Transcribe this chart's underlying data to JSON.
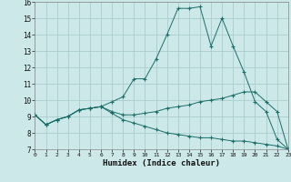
{
  "xlabel": "Humidex (Indice chaleur)",
  "bg_color": "#cce8e8",
  "grid_color": "#aacccc",
  "line_color": "#1a6e6a",
  "x_data": [
    0,
    1,
    2,
    3,
    4,
    5,
    6,
    7,
    8,
    9,
    10,
    11,
    12,
    13,
    14,
    15,
    16,
    17,
    18,
    19,
    20,
    21,
    22,
    23
  ],
  "line1": [
    9.1,
    8.5,
    8.8,
    9.0,
    9.4,
    9.5,
    9.6,
    9.9,
    10.2,
    11.3,
    11.3,
    12.5,
    14.0,
    15.6,
    15.6,
    15.7,
    13.3,
    15.0,
    13.3,
    11.7,
    9.9,
    9.3,
    7.6,
    7.0
  ],
  "line2": [
    9.1,
    8.5,
    8.8,
    9.0,
    9.4,
    9.5,
    9.6,
    9.3,
    9.1,
    9.1,
    9.2,
    9.3,
    9.5,
    9.6,
    9.7,
    9.9,
    10.0,
    10.1,
    10.3,
    10.5,
    10.5,
    9.9,
    9.3,
    7.0
  ],
  "line3": [
    9.1,
    8.5,
    8.8,
    9.0,
    9.4,
    9.5,
    9.6,
    9.2,
    8.8,
    8.6,
    8.4,
    8.2,
    8.0,
    7.9,
    7.8,
    7.7,
    7.7,
    7.6,
    7.5,
    7.5,
    7.4,
    7.3,
    7.2,
    7.0
  ],
  "xlim": [
    0,
    23
  ],
  "ylim": [
    7,
    16
  ],
  "yticks": [
    7,
    8,
    9,
    10,
    11,
    12,
    13,
    14,
    15,
    16
  ],
  "xticks": [
    0,
    1,
    2,
    3,
    4,
    5,
    6,
    7,
    8,
    9,
    10,
    11,
    12,
    13,
    14,
    15,
    16,
    17,
    18,
    19,
    20,
    21,
    22,
    23
  ]
}
